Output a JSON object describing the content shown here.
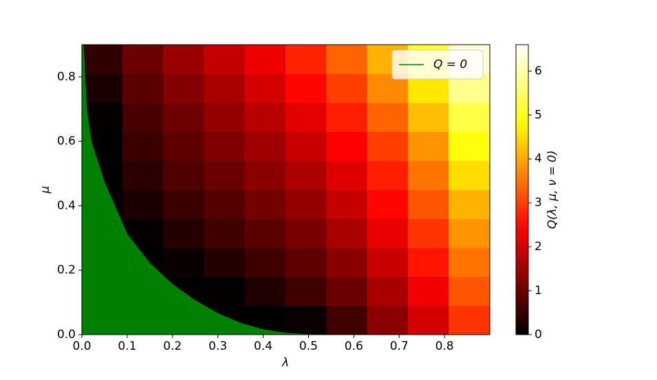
{
  "chart_data": {
    "type": "heatmap",
    "x_label": "λ",
    "y_label": "μ",
    "colorbar_label": "Q(λ, μ, ν = 0)",
    "colormap": "hot",
    "xlim": [
      0,
      0.9
    ],
    "ylim": [
      0,
      0.9
    ],
    "clim": [
      0,
      6.6
    ],
    "xticks": [
      {
        "value": 0,
        "label": "0.0"
      },
      0.1,
      0.2,
      0.3,
      0.4,
      0.5,
      0.6,
      0.7,
      0.8
    ],
    "yticks": [
      {
        "value": 0,
        "label": "0.0"
      },
      0.2,
      0.4,
      0.6,
      0.8
    ],
    "cticks": [
      0,
      1,
      2,
      3,
      4,
      5,
      6
    ],
    "x": [
      0.045,
      0.135,
      0.225,
      0.315,
      0.405,
      0.495,
      0.585,
      0.675,
      0.765,
      0.855
    ],
    "y": [
      0.045,
      0.135,
      0.225,
      0.315,
      0.405,
      0.495,
      0.585,
      0.675,
      0.765,
      0.855
    ],
    "z": [
      [
        -3,
        -1.5,
        -0.8,
        -0.4,
        -0.1,
        0.1,
        0.6,
        1.3,
        2.0,
        2.9
      ],
      [
        -2,
        -0.6,
        -0.2,
        0.05,
        0.3,
        0.6,
        1.0,
        1.6,
        2.3,
        3.2
      ],
      [
        -1.5,
        -0.2,
        0.1,
        0.35,
        0.6,
        0.9,
        1.3,
        1.9,
        2.6,
        3.5
      ],
      [
        -1.1,
        0.05,
        0.35,
        0.6,
        0.85,
        1.15,
        1.6,
        2.2,
        2.9,
        3.8
      ],
      [
        -0.8,
        0.25,
        0.55,
        0.8,
        1.1,
        1.4,
        1.85,
        2.45,
        3.2,
        4.1
      ],
      [
        -0.5,
        0.4,
        0.75,
        1.0,
        1.3,
        1.65,
        2.1,
        2.7,
        3.5,
        4.5
      ],
      [
        -0.2,
        0.55,
        0.9,
        1.2,
        1.5,
        1.9,
        2.4,
        3.0,
        3.8,
        4.9
      ],
      [
        0.05,
        0.7,
        1.05,
        1.4,
        1.75,
        2.15,
        2.7,
        3.35,
        4.2,
        5.3
      ],
      [
        0.25,
        0.85,
        1.25,
        1.6,
        2.0,
        2.45,
        3.0,
        3.7,
        4.6,
        5.8
      ],
      [
        0.45,
        1.0,
        1.45,
        1.85,
        2.25,
        2.75,
        3.35,
        4.1,
        5.1,
        6.3
      ]
    ],
    "contour": {
      "name": "Q = 0",
      "color": "#008000",
      "x": [
        0.003,
        0.01,
        0.02,
        0.05,
        0.1,
        0.15,
        0.2,
        0.25,
        0.3,
        0.35,
        0.4,
        0.45,
        0.5
      ],
      "y": [
        0.9,
        0.7,
        0.6,
        0.47,
        0.31,
        0.22,
        0.155,
        0.105,
        0.065,
        0.035,
        0.015,
        0.004,
        0
      ]
    },
    "legend": "upper right"
  }
}
